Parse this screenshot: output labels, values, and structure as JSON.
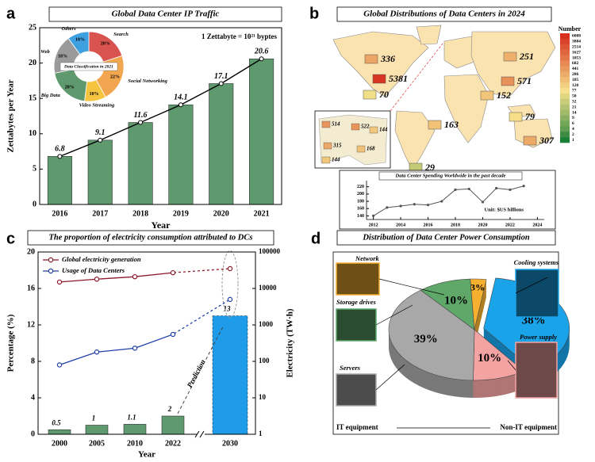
{
  "chart_data": [
    {
      "panel": "a",
      "type": "bar",
      "title": "Global Data Center IP Traffic",
      "annotation": "1 Zettabyte = 10²¹ byptes",
      "xlabel": "Year",
      "ylabel": "Zettabytes per Year",
      "categories": [
        "2016",
        "2017",
        "2018",
        "2019",
        "2020",
        "2021"
      ],
      "values": [
        6.8,
        9.1,
        11.6,
        14.1,
        17.1,
        20.6
      ],
      "color": "#5e9a6e",
      "line_color": "#000000",
      "ylim": [
        0,
        25
      ],
      "yticks": [
        0,
        5,
        10,
        15,
        20,
        25
      ]
    },
    {
      "type": "donut",
      "title": "Data Classification in 2021",
      "categories": [
        "Search",
        "Social Networking",
        "Video Streaming",
        "Big Data",
        "Web",
        "Others"
      ],
      "values": [
        20,
        22,
        10,
        20,
        18,
        10
      ],
      "value_labels": [
        "20%",
        "22%",
        "10%",
        "20%",
        "18%",
        "10%"
      ],
      "colors": [
        "#d9534f",
        "#f2a650",
        "#f5c542",
        "#5e9a6e",
        "#9a9a9a",
        "#3fa0e0"
      ]
    },
    {
      "panel": "b",
      "type": "map",
      "title": "Global Distributions of Data Centers in 2024",
      "values": [
        336,
        5381,
        70,
        251,
        571,
        152,
        79,
        307,
        163,
        29
      ],
      "inset_values": [
        514,
        522,
        144,
        315,
        168,
        144
      ],
      "colorbar": {
        "title": "Number",
        "clim": [
          1,
          6088
        ],
        "colors": [
          "#1a7f37",
          "#f7e08a",
          "#d7301f"
        ],
        "ticks": [
          6088,
          3884,
          2514,
          1627,
          1053,
          682,
          441,
          286,
          185,
          120,
          77,
          50,
          32,
          21,
          14,
          9,
          6,
          4,
          2,
          1
        ]
      }
    },
    {
      "type": "line",
      "title": "Data Center Spending Worldwide in the past decade",
      "note": "Unit: $US billions",
      "x": [
        2012,
        2013,
        2014,
        2015,
        2016,
        2017,
        2018,
        2019,
        2020,
        2021,
        2022,
        2023
      ],
      "values": [
        140,
        163,
        167,
        172,
        170,
        180,
        212,
        214,
        178,
        216,
        212,
        222
      ],
      "color": "#555555",
      "xlim": [
        2011.5,
        2024.5
      ],
      "xticks": [
        2012,
        2014,
        2016,
        2018,
        2020,
        2022,
        2024
      ],
      "ylim": [
        130,
        228
      ],
      "yticks": [
        140,
        160,
        180,
        200,
        220
      ]
    },
    {
      "panel": "c",
      "type": "combo",
      "title": "The proportion of electricity consumption attributed to DCs",
      "annotation": "Prediction",
      "xlabel": "Year",
      "ylabel": "Percentage (%)",
      "y2label": "Electricity (TW·h)",
      "categories": [
        "2000",
        "2005",
        "2010",
        "2022",
        "2030"
      ],
      "values": [
        0.5,
        1,
        1.1,
        2,
        13
      ],
      "colors": [
        "#5e9a6e",
        "#5e9a6e",
        "#5e9a6e",
        "#5e9a6e",
        "#1e9be9"
      ],
      "ylim": [
        0,
        20
      ],
      "yticks": [
        0,
        4,
        8,
        12,
        16,
        20
      ],
      "y2lim": [
        1,
        100000
      ],
      "y2ticks": [
        1,
        10,
        100,
        1000,
        10000,
        100000
      ],
      "y2log": true,
      "series": [
        {
          "name": "Global electricity generation",
          "color": "#8b1a2b",
          "axis": "y2",
          "values": [
            15000,
            18000,
            21000,
            27000,
            35000
          ]
        },
        {
          "name": "Usage of Data Centers",
          "color": "#1f3fa8",
          "axis": "y2",
          "values": [
            80,
            180,
            230,
            550,
            5000
          ]
        }
      ]
    },
    {
      "panel": "d",
      "type": "pie",
      "title": "Distribution of Data Center Power Consumption",
      "categories": [
        "Cooling systems",
        "Power supply",
        "Servers",
        "Storage drives",
        "Network"
      ],
      "values": [
        38,
        10,
        39,
        10,
        3
      ],
      "value_labels": [
        "38%",
        "10%",
        "39%",
        "10%",
        "3%"
      ],
      "colors": [
        "#1aa3e8",
        "#f4a3a3",
        "#a8a8a8",
        "#5fa86a",
        "#f5b030"
      ],
      "groups": [
        "IT equipment",
        "Non-IT equipment"
      ]
    }
  ]
}
